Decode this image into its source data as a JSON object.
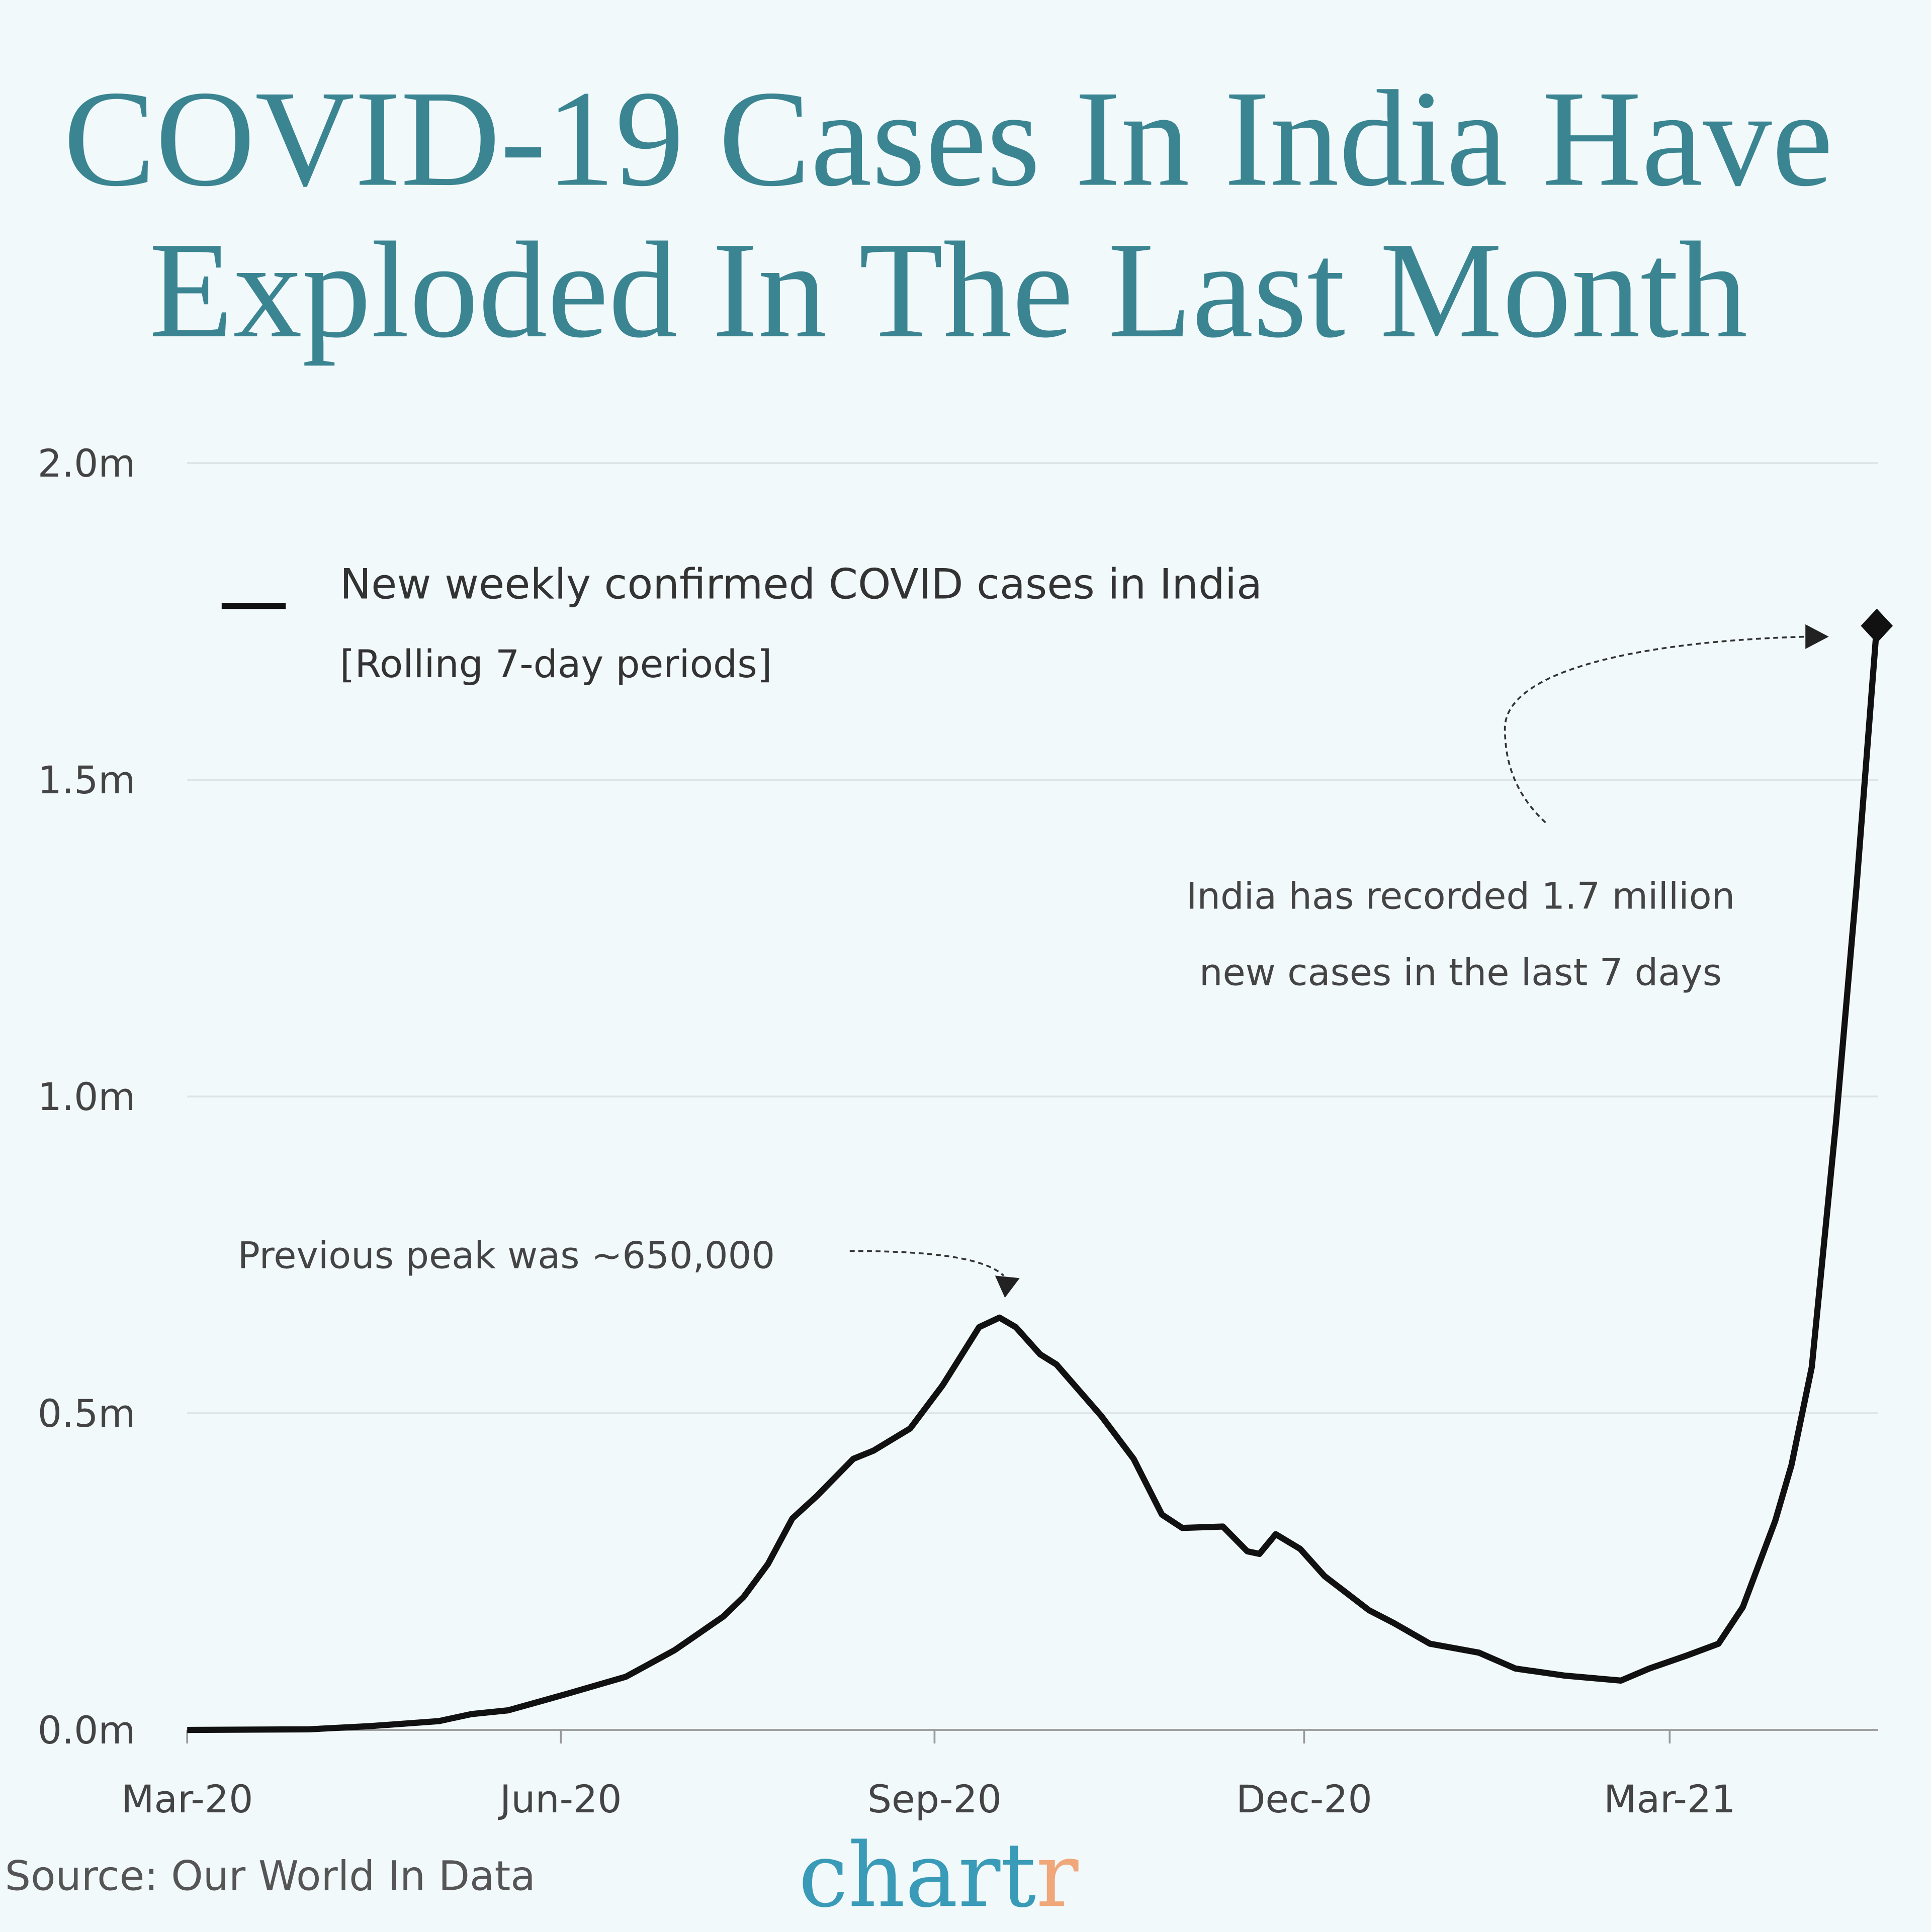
{
  "title": {
    "line1": "COVID-19 Cases In India Have",
    "line2": "Exploded In The Last Month",
    "color": "#3b8592"
  },
  "source": "Source: Our World In Data",
  "logo": {
    "main": "chart",
    "accent": "r",
    "main_color": "#3a9bb8",
    "accent_color": "#f0a77a"
  },
  "chart_data": {
    "type": "line",
    "title": "COVID-19 Cases In India Have Exploded In The Last Month",
    "xlabel": "",
    "ylabel": "",
    "ylim": [
      0,
      2000000
    ],
    "xlim": [
      "2020-03-01",
      "2021-04-21"
    ],
    "grid": true,
    "yticks": [
      {
        "value": 0,
        "label": "0.0m"
      },
      {
        "value": 500000,
        "label": "0.5m"
      },
      {
        "value": 1000000,
        "label": "1.0m"
      },
      {
        "value": 1500000,
        "label": "1.5m"
      },
      {
        "value": 2000000,
        "label": "2.0m"
      }
    ],
    "xticks": [
      {
        "date": "2020-03-01",
        "label": "Mar-20"
      },
      {
        "date": "2020-06-01",
        "label": "Jun-20"
      },
      {
        "date": "2020-09-01",
        "label": "Sep-20"
      },
      {
        "date": "2020-12-01",
        "label": "Dec-20"
      },
      {
        "date": "2021-03-01",
        "label": "Mar-21"
      }
    ],
    "legend": {
      "position": "top-left",
      "label": "New weekly confirmed COVID cases in India",
      "sublabel": "[Rolling 7-day periods]"
    },
    "line_color": "#111111",
    "series": [
      {
        "name": "New weekly confirmed COVID cases in India",
        "points": [
          [
            "2020-03-01",
            0
          ],
          [
            "2020-03-31",
            1000
          ],
          [
            "2020-04-15",
            6000
          ],
          [
            "2020-05-02",
            14000
          ],
          [
            "2020-05-10",
            25000
          ],
          [
            "2020-05-19",
            31000
          ],
          [
            "2020-05-28",
            47000
          ],
          [
            "2020-06-03",
            58000
          ],
          [
            "2020-06-17",
            84000
          ],
          [
            "2020-06-29",
            126000
          ],
          [
            "2020-07-11",
            179000
          ],
          [
            "2020-07-16",
            210000
          ],
          [
            "2020-07-22",
            262000
          ],
          [
            "2020-07-28",
            334000
          ],
          [
            "2020-08-03",
            369000
          ],
          [
            "2020-08-12",
            428000
          ],
          [
            "2020-08-17",
            441000
          ],
          [
            "2020-08-26",
            476000
          ],
          [
            "2020-09-03",
            544000
          ],
          [
            "2020-09-12",
            636000
          ],
          [
            "2020-09-17",
            651000
          ],
          [
            "2020-09-21",
            636000
          ],
          [
            "2020-09-27",
            593000
          ],
          [
            "2020-10-01",
            577000
          ],
          [
            "2020-10-12",
            496000
          ],
          [
            "2020-10-20",
            428000
          ],
          [
            "2020-10-27",
            340000
          ],
          [
            "2020-11-01",
            319000
          ],
          [
            "2020-11-11",
            321000
          ],
          [
            "2020-11-17",
            282000
          ],
          [
            "2020-11-20",
            278000
          ],
          [
            "2020-11-24",
            309000
          ],
          [
            "2020-11-30",
            286000
          ],
          [
            "2020-12-06",
            243000
          ],
          [
            "2020-12-17",
            189000
          ],
          [
            "2020-12-23",
            169000
          ],
          [
            "2021-01-01",
            136000
          ],
          [
            "2021-01-13",
            122000
          ],
          [
            "2021-01-22",
            97000
          ],
          [
            "2021-02-03",
            86000
          ],
          [
            "2021-02-17",
            78000
          ],
          [
            "2021-02-24",
            97000
          ],
          [
            "2021-03-05",
            117000
          ],
          [
            "2021-03-13",
            136000
          ],
          [
            "2021-03-19",
            194000
          ],
          [
            "2021-03-27",
            330000
          ],
          [
            "2021-03-31",
            418000
          ],
          [
            "2021-04-05",
            573000
          ],
          [
            "2021-04-11",
            962000
          ],
          [
            "2021-04-16",
            1331000
          ],
          [
            "2021-04-21",
            1743000
          ]
        ]
      }
    ],
    "annotations": [
      {
        "text": "Previous peak was ~650,000",
        "target": [
          "2020-09-17",
          650000
        ]
      },
      {
        "line1": "India has recorded  1.7 million",
        "line2": "new cases in the last 7 days",
        "target": [
          "2021-04-21",
          1743000
        ]
      }
    ]
  }
}
